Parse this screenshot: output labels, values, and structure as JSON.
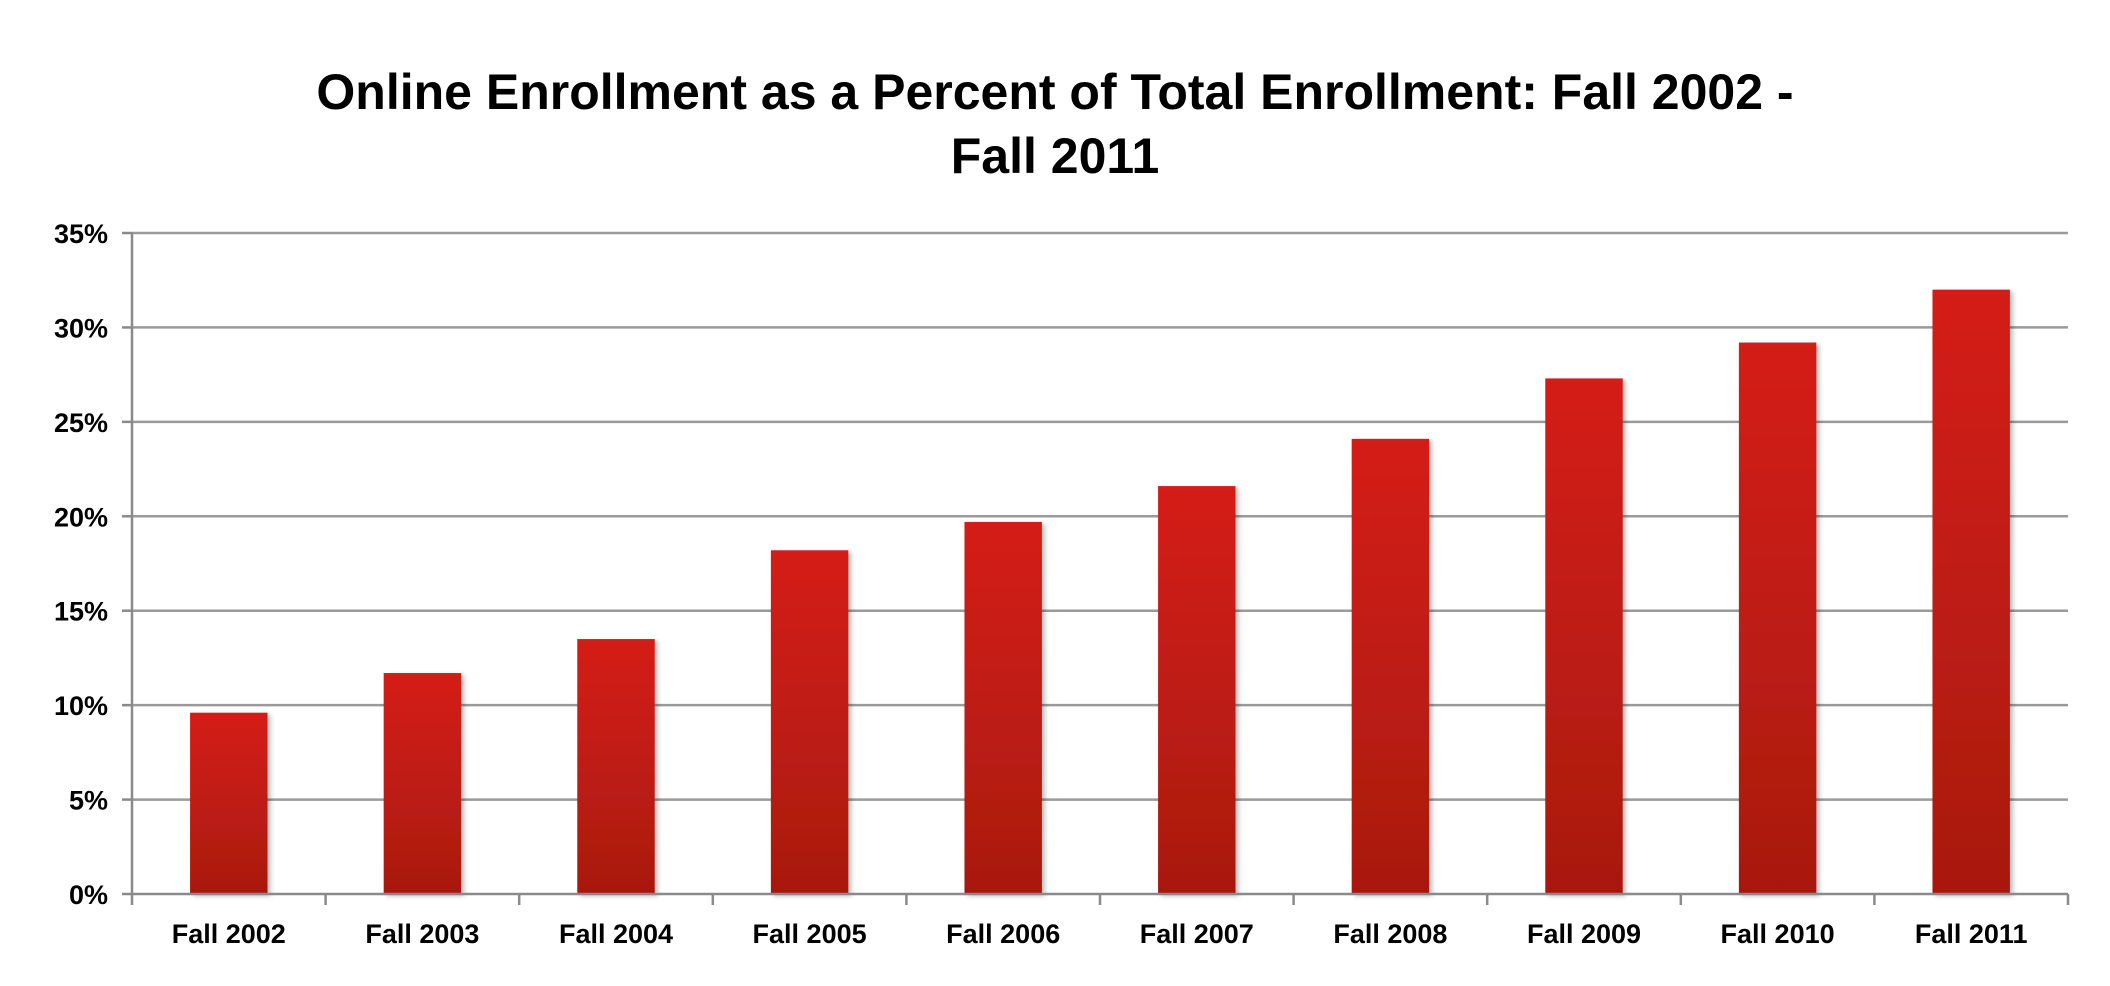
{
  "chart_data": {
    "type": "bar",
    "title_lines": [
      "Online Enrollment as a Percent of Total Enrollment: Fall 2002 -",
      "Fall 2011"
    ],
    "categories": [
      "Fall 2002",
      "Fall 2003",
      "Fall 2004",
      "Fall 2005",
      "Fall 2006",
      "Fall 2007",
      "Fall 2008",
      "Fall 2009",
      "Fall 2010",
      "Fall 2011"
    ],
    "values": [
      9.6,
      11.7,
      13.5,
      18.2,
      19.7,
      21.6,
      24.1,
      27.3,
      29.2,
      32.0
    ],
    "ylim": [
      0,
      35
    ],
    "yticks": [
      0,
      5,
      10,
      15,
      20,
      25,
      30,
      35
    ],
    "ytick_labels": [
      "0%",
      "5%",
      "10%",
      "15%",
      "20%",
      "25%",
      "30%",
      "35%"
    ],
    "xlabel": "",
    "ylabel": "",
    "grid": true,
    "legend": "none",
    "colors": {
      "bar_top": "#d51e17",
      "bar_bottom": "#a8190f",
      "grid": "#9a9a9a",
      "axis": "#8a8a8a"
    }
  }
}
